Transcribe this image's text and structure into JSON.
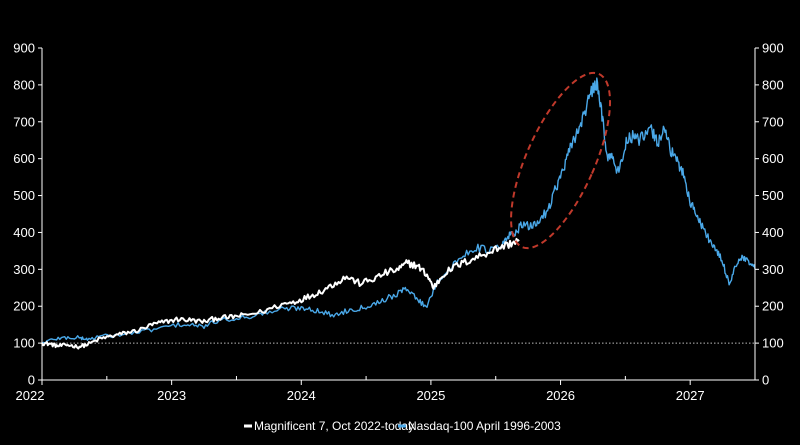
{
  "chart_data": {
    "type": "line",
    "x_axis": {
      "tick_labels": [
        "2022",
        "2023",
        "2024",
        "2025",
        "2026",
        "2027"
      ],
      "range": [
        2022,
        2027.5
      ]
    },
    "y_axis": {
      "tick_labels": [
        "0",
        "100",
        "200",
        "300",
        "400",
        "500",
        "600",
        "700",
        "800",
        "900"
      ],
      "range": [
        0,
        900
      ],
      "mirrored_right": true
    },
    "reference_line": {
      "y": 100,
      "style": "dotted"
    },
    "grid": false,
    "legend_position": "bottom-center",
    "annotation": {
      "shape": "dashed-ellipse",
      "around": {
        "x": [
          2025.7,
          2026.3
        ],
        "y": [
          360,
          830
        ]
      }
    },
    "colors": {
      "background": "#000000",
      "axis": "#ffffff",
      "annotation": "#c0392b"
    },
    "series": [
      {
        "name": "Magnificent 7, Oct 2022-today",
        "color": "#ffffff",
        "points": [
          [
            2022.0,
            100
          ],
          [
            2022.06,
            98
          ],
          [
            2022.12,
            92
          ],
          [
            2022.2,
            95
          ],
          [
            2022.28,
            90
          ],
          [
            2022.35,
            96
          ],
          [
            2022.45,
            112
          ],
          [
            2022.55,
            120
          ],
          [
            2022.65,
            128
          ],
          [
            2022.75,
            135
          ],
          [
            2022.85,
            150
          ],
          [
            2022.95,
            158
          ],
          [
            2023.05,
            165
          ],
          [
            2023.15,
            162
          ],
          [
            2023.25,
            158
          ],
          [
            2023.35,
            168
          ],
          [
            2023.45,
            170
          ],
          [
            2023.55,
            175
          ],
          [
            2023.7,
            185
          ],
          [
            2023.85,
            205
          ],
          [
            2023.95,
            212
          ],
          [
            2024.05,
            225
          ],
          [
            2024.15,
            240
          ],
          [
            2024.25,
            260
          ],
          [
            2024.35,
            280
          ],
          [
            2024.45,
            262
          ],
          [
            2024.55,
            272
          ],
          [
            2024.65,
            290
          ],
          [
            2024.75,
            300
          ],
          [
            2024.82,
            318
          ],
          [
            2024.9,
            308
          ],
          [
            2024.97,
            285
          ],
          [
            2025.02,
            250
          ],
          [
            2025.1,
            288
          ],
          [
            2025.2,
            310
          ],
          [
            2025.3,
            325
          ],
          [
            2025.4,
            340
          ],
          [
            2025.5,
            355
          ],
          [
            2025.6,
            368
          ],
          [
            2025.68,
            380
          ]
        ]
      },
      {
        "name": "Nasdaq-100 April 1996-2003",
        "color": "#4aa8e8",
        "points": [
          [
            2022.0,
            100
          ],
          [
            2022.1,
            112
          ],
          [
            2022.2,
            115
          ],
          [
            2022.3,
            114
          ],
          [
            2022.35,
            110
          ],
          [
            2022.45,
            118
          ],
          [
            2022.6,
            122
          ],
          [
            2022.75,
            130
          ],
          [
            2022.9,
            140
          ],
          [
            2023.05,
            150
          ],
          [
            2023.15,
            148
          ],
          [
            2023.25,
            145
          ],
          [
            2023.35,
            160
          ],
          [
            2023.5,
            168
          ],
          [
            2023.6,
            172
          ],
          [
            2023.7,
            180
          ],
          [
            2023.85,
            192
          ],
          [
            2023.95,
            195
          ],
          [
            2024.05,
            195
          ],
          [
            2024.15,
            185
          ],
          [
            2024.25,
            175
          ],
          [
            2024.35,
            188
          ],
          [
            2024.45,
            195
          ],
          [
            2024.55,
            205
          ],
          [
            2024.65,
            220
          ],
          [
            2024.75,
            235
          ],
          [
            2024.82,
            250
          ],
          [
            2024.9,
            215
          ],
          [
            2024.97,
            200
          ],
          [
            2025.05,
            270
          ],
          [
            2025.15,
            300
          ],
          [
            2025.25,
            340
          ],
          [
            2025.35,
            360
          ],
          [
            2025.45,
            350
          ],
          [
            2025.55,
            365
          ],
          [
            2025.6,
            390
          ],
          [
            2025.65,
            400
          ],
          [
            2025.7,
            420
          ],
          [
            2025.77,
            415
          ],
          [
            2025.83,
            430
          ],
          [
            2025.9,
            460
          ],
          [
            2025.95,
            510
          ],
          [
            2026.0,
            550
          ],
          [
            2026.05,
            600
          ],
          [
            2026.1,
            650
          ],
          [
            2026.15,
            690
          ],
          [
            2026.2,
            740
          ],
          [
            2026.25,
            790
          ],
          [
            2026.28,
            800
          ],
          [
            2026.32,
            720
          ],
          [
            2026.36,
            610
          ],
          [
            2026.4,
            600
          ],
          [
            2026.45,
            560
          ],
          [
            2026.5,
            640
          ],
          [
            2026.55,
            660
          ],
          [
            2026.6,
            650
          ],
          [
            2026.65,
            660
          ],
          [
            2026.7,
            680
          ],
          [
            2026.75,
            640
          ],
          [
            2026.8,
            690
          ],
          [
            2026.85,
            620
          ],
          [
            2026.9,
            590
          ],
          [
            2026.95,
            560
          ],
          [
            2027.0,
            480
          ],
          [
            2027.05,
            450
          ],
          [
            2027.1,
            410
          ],
          [
            2027.15,
            380
          ],
          [
            2027.2,
            350
          ],
          [
            2027.25,
            320
          ],
          [
            2027.3,
            260
          ],
          [
            2027.35,
            310
          ],
          [
            2027.4,
            330
          ],
          [
            2027.45,
            320
          ],
          [
            2027.5,
            300
          ]
        ]
      }
    ]
  }
}
